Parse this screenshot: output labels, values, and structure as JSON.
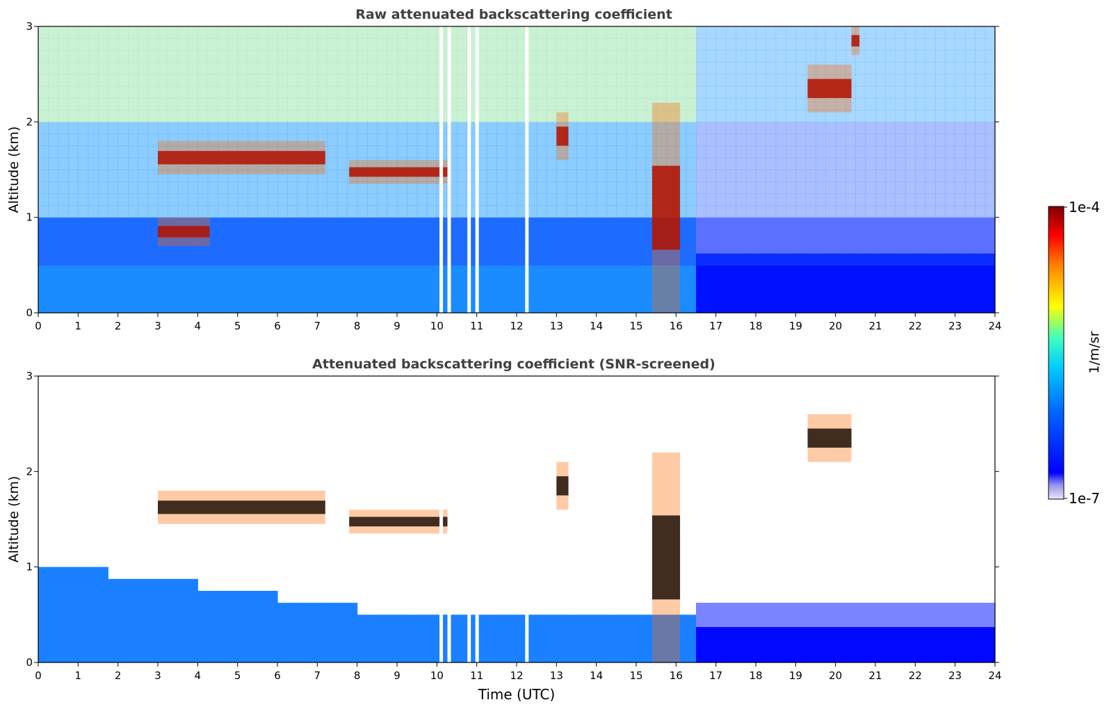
{
  "chart_data": [
    {
      "type": "heatmap",
      "title": "Raw attenuated backscattering coefficient",
      "xlabel": "",
      "ylabel": "Altitude (km)",
      "xlim": [
        0,
        24
      ],
      "ylim": [
        0,
        3
      ],
      "xticks": [
        "0",
        "1",
        "2",
        "3",
        "4",
        "5",
        "6",
        "7",
        "8",
        "9",
        "10",
        "11",
        "12",
        "13",
        "14",
        "15",
        "16",
        "17",
        "18",
        "19",
        "20",
        "21",
        "22",
        "23",
        "24"
      ],
      "yticks": [
        "0",
        "1",
        "2",
        "3"
      ],
      "grid": false,
      "features": [
        {
          "t": [
            3.0,
            7.2
          ],
          "alt": [
            1.45,
            1.8
          ],
          "level": "high"
        },
        {
          "t": [
            7.8,
            10.3
          ],
          "alt": [
            1.35,
            1.6
          ],
          "level": "high"
        },
        {
          "t": [
            3.0,
            4.3
          ],
          "alt": [
            0.7,
            1.0
          ],
          "level": "high"
        },
        {
          "t": [
            13.0,
            13.3
          ],
          "alt": [
            1.6,
            2.1
          ],
          "level": "high"
        },
        {
          "t": [
            15.4,
            16.1
          ],
          "alt": [
            0.0,
            2.2
          ],
          "level": "high"
        },
        {
          "t": [
            19.3,
            20.4
          ],
          "alt": [
            2.1,
            2.6
          ],
          "level": "high"
        },
        {
          "t": [
            20.4,
            20.6
          ],
          "alt": [
            2.7,
            3.0
          ],
          "level": "high"
        }
      ],
      "data_gaps_utc": [
        10.1,
        10.3,
        10.8,
        11.0,
        12.25
      ]
    },
    {
      "type": "heatmap",
      "title": "Attenuated backscattering coefficient (SNR-screened)",
      "xlabel": "Time (UTC)",
      "ylabel": "Altitude (km)",
      "xlim": [
        0,
        24
      ],
      "ylim": [
        0,
        3
      ],
      "xticks": [
        "0",
        "1",
        "2",
        "3",
        "4",
        "5",
        "6",
        "7",
        "8",
        "9",
        "10",
        "11",
        "12",
        "13",
        "14",
        "15",
        "16",
        "17",
        "18",
        "19",
        "20",
        "21",
        "22",
        "23",
        "24"
      ],
      "yticks": [
        "0",
        "1",
        "2",
        "3"
      ],
      "grid": false,
      "features": [
        {
          "t": [
            3.0,
            7.2
          ],
          "alt": [
            1.45,
            1.8
          ],
          "level": "high"
        },
        {
          "t": [
            7.8,
            10.3
          ],
          "alt": [
            1.35,
            1.6
          ],
          "level": "high"
        },
        {
          "t": [
            13.0,
            13.3
          ],
          "alt": [
            1.6,
            2.1
          ],
          "level": "high"
        },
        {
          "t": [
            15.4,
            16.1
          ],
          "alt": [
            0.0,
            2.2
          ],
          "level": "high"
        },
        {
          "t": [
            19.3,
            20.4
          ],
          "alt": [
            2.1,
            2.6
          ],
          "level": "high"
        }
      ],
      "data_gaps_utc": [
        10.1,
        10.3,
        10.8,
        11.0,
        12.25
      ]
    }
  ],
  "colorbar": {
    "label": "1/m/sr",
    "max_label": "1e-4",
    "min_label": "1e-7",
    "scale": "log",
    "colormap": "jet",
    "min_color": "#e8e8f8",
    "max_color": "#7f0000"
  }
}
